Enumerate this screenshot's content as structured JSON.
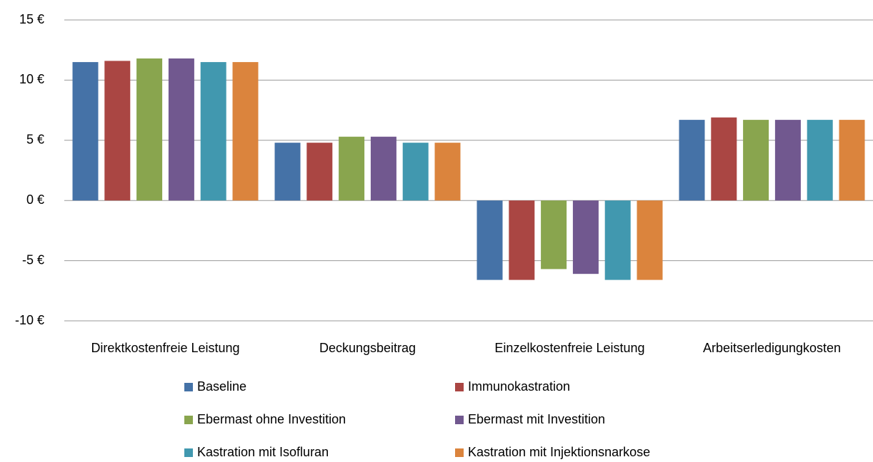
{
  "chart_data": {
    "type": "bar",
    "categories": [
      "Direktkostenfreie Leistung",
      "Deckungsbeitrag",
      "Einzelkostenfreie Leistung",
      "Arbeitserledigungkosten"
    ],
    "series": [
      {
        "name": "Baseline",
        "color": "#4572A7",
        "values": [
          11.5,
          4.8,
          -6.6,
          6.7
        ]
      },
      {
        "name": "Immunokastration",
        "color": "#AA4643",
        "values": [
          11.6,
          4.8,
          -6.6,
          6.9
        ]
      },
      {
        "name": "Ebermast ohne Investition",
        "color": "#89A54E",
        "values": [
          11.8,
          5.3,
          -5.7,
          6.7
        ]
      },
      {
        "name": "Ebermast mit Investition",
        "color": "#71588F",
        "values": [
          11.8,
          5.3,
          -6.1,
          6.7
        ]
      },
      {
        "name": "Kastration mit Isofluran",
        "color": "#4198AF",
        "values": [
          11.5,
          4.8,
          -6.6,
          6.7
        ]
      },
      {
        "name": "Kastration mit Injektionsnarkose",
        "color": "#DB843D",
        "values": [
          11.5,
          4.8,
          -6.6,
          6.7
        ]
      }
    ],
    "ylim": [
      -10,
      15
    ],
    "yticks": [
      {
        "value": -10,
        "label": "-10 €"
      },
      {
        "value": -5,
        "label": "-5 €"
      },
      {
        "value": 0,
        "label": "0 €"
      },
      {
        "value": 5,
        "label": "5 €"
      },
      {
        "value": 10,
        "label": "10 €"
      },
      {
        "value": 15,
        "label": "15 €"
      }
    ],
    "grid": true,
    "legend": "bottom"
  }
}
